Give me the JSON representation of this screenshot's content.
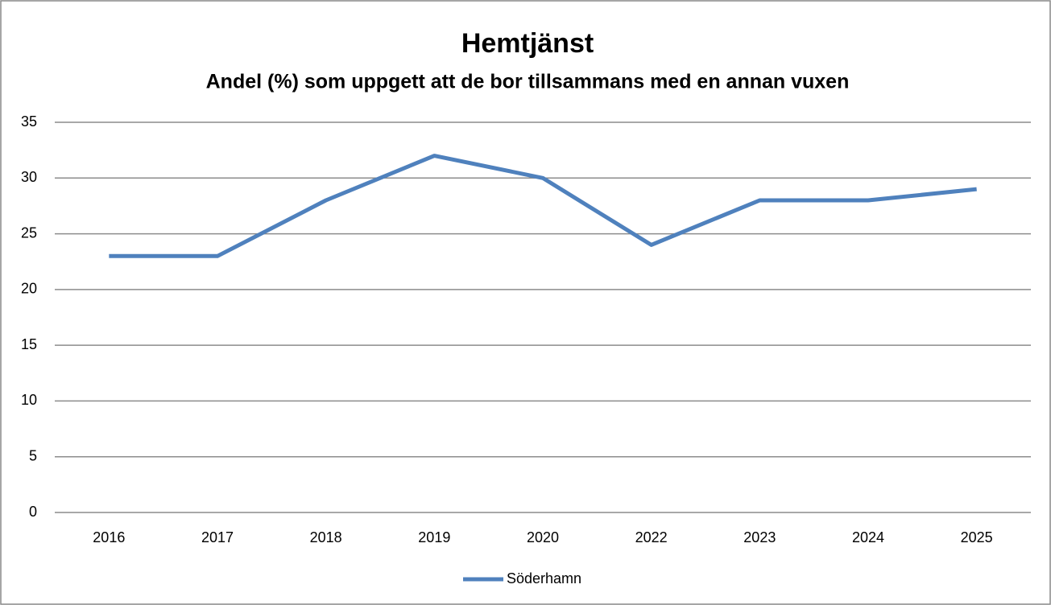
{
  "chart_data": {
    "type": "line",
    "title": "Hemtjänst",
    "subtitle": "Andel (%) som uppgett att de bor tillsammans med en annan vuxen",
    "categories": [
      "2016",
      "2017",
      "2018",
      "2019",
      "2020",
      "2022",
      "2023",
      "2024",
      "2025"
    ],
    "series": [
      {
        "name": "Söderhamn",
        "color": "#4f81bd",
        "values": [
          23,
          23,
          28,
          32,
          30,
          24,
          28,
          28,
          29
        ]
      }
    ],
    "ylim": [
      0,
      35
    ],
    "yticks": [
      0,
      5,
      10,
      15,
      20,
      25,
      30,
      35
    ],
    "grid": true,
    "legend": "bottom"
  }
}
